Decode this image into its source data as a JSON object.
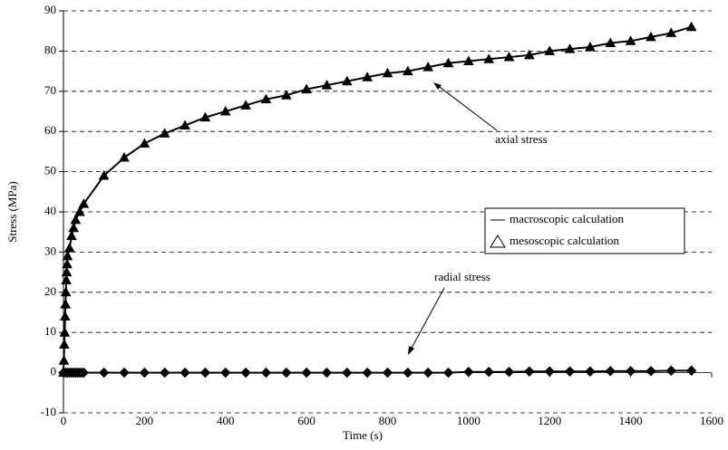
{
  "chart_data": {
    "type": "line",
    "xlabel": "Time (s)",
    "ylabel": "Stress (MPa)",
    "xlim": [
      0,
      1600
    ],
    "xticks": [
      0,
      200,
      400,
      600,
      800,
      1000,
      1200,
      1400,
      1600
    ],
    "ylim": [
      -10,
      90
    ],
    "yticks": [
      -10,
      0,
      10,
      20,
      30,
      40,
      50,
      60,
      70,
      80,
      90
    ],
    "grid": true,
    "legend": "right",
    "annotations": [
      {
        "text": "axial stress"
      },
      {
        "text": "radial stress"
      }
    ],
    "series": [
      {
        "name": "macroscopic calculation",
        "color": "#000000",
        "marker": "none",
        "x": [
          0,
          1,
          2,
          3,
          4,
          5,
          6,
          7,
          8,
          9,
          10,
          15,
          20,
          25,
          30,
          40,
          50,
          100,
          150,
          200,
          250,
          300,
          350,
          400,
          450,
          500,
          550,
          600,
          650,
          700,
          750,
          800,
          850,
          900,
          950,
          1000,
          1050,
          1100,
          1150,
          1200,
          1250,
          1300,
          1350,
          1400,
          1450,
          1500,
          1550
        ],
        "values": [
          0,
          3,
          7,
          10,
          14,
          17,
          20,
          23,
          25,
          27,
          29,
          31,
          34,
          36,
          38,
          40,
          42,
          49,
          53.5,
          57,
          59.5,
          61.5,
          63.5,
          65,
          66.5,
          68,
          69,
          70.5,
          71.5,
          72.5,
          73.5,
          74.5,
          75,
          76,
          77,
          77.5,
          78,
          78.5,
          79,
          80,
          80.5,
          81,
          82,
          82.5,
          83.5,
          84.5,
          86
        ]
      },
      {
        "name": "mesoscopic calculation",
        "color": "#000000",
        "marker": "triangle",
        "x": [
          0,
          1,
          2,
          3,
          4,
          5,
          6,
          7,
          8,
          9,
          10,
          15,
          20,
          25,
          30,
          40,
          50,
          100,
          150,
          200,
          250,
          300,
          350,
          400,
          450,
          500,
          550,
          600,
          650,
          700,
          750,
          800,
          850,
          900,
          950,
          1000,
          1050,
          1100,
          1150,
          1200,
          1250,
          1300,
          1350,
          1400,
          1450,
          1500,
          1550
        ],
        "values": [
          0,
          3,
          7,
          10,
          14,
          17,
          20,
          23,
          25,
          27,
          29,
          31,
          34,
          36,
          38,
          40,
          42,
          49,
          53.5,
          57,
          59.5,
          61.5,
          63.5,
          65,
          66.5,
          68,
          69,
          70.5,
          71.5,
          72.5,
          73.5,
          74.5,
          75,
          76,
          77,
          77.5,
          78,
          78.5,
          79,
          80,
          80.5,
          81,
          82,
          82.5,
          83.5,
          84.5,
          86
        ]
      },
      {
        "color": "#000000",
        "marker": "none",
        "x": [
          0,
          5,
          10,
          15,
          20,
          25,
          30,
          35,
          40,
          45,
          50,
          100,
          150,
          200,
          250,
          300,
          350,
          400,
          450,
          500,
          550,
          600,
          650,
          700,
          750,
          800,
          850,
          900,
          950,
          1000,
          1050,
          1100,
          1150,
          1200,
          1250,
          1300,
          1350,
          1400,
          1450,
          1500,
          1550
        ],
        "values": [
          0,
          0,
          0,
          0,
          0,
          0,
          0,
          0,
          0,
          0,
          0,
          0,
          0,
          0,
          0,
          0,
          0,
          0,
          0,
          0,
          0,
          0,
          0,
          0,
          0,
          0,
          0,
          0,
          0,
          0.2,
          0.2,
          0.2,
          0.3,
          0.3,
          0.3,
          0.3,
          0.4,
          0.4,
          0.4,
          0.5,
          0.5
        ]
      },
      {
        "color": "#000000",
        "marker": "diamond",
        "x": [
          0,
          5,
          10,
          15,
          20,
          25,
          30,
          35,
          40,
          45,
          50,
          100,
          150,
          200,
          250,
          300,
          350,
          400,
          450,
          500,
          550,
          600,
          650,
          700,
          750,
          800,
          850,
          900,
          950,
          1000,
          1050,
          1100,
          1150,
          1200,
          1250,
          1300,
          1350,
          1400,
          1450,
          1500,
          1550
        ],
        "values": [
          0,
          0,
          0,
          0,
          0,
          0,
          0,
          0,
          0,
          0,
          0,
          0,
          0,
          0,
          0,
          0,
          0,
          0,
          0,
          0,
          0,
          0,
          0,
          0,
          0,
          0,
          0,
          0,
          0,
          0.2,
          0.2,
          0.2,
          0.3,
          0.3,
          0.3,
          0.3,
          0.4,
          0.4,
          0.4,
          0.5,
          0.5
        ]
      }
    ]
  }
}
